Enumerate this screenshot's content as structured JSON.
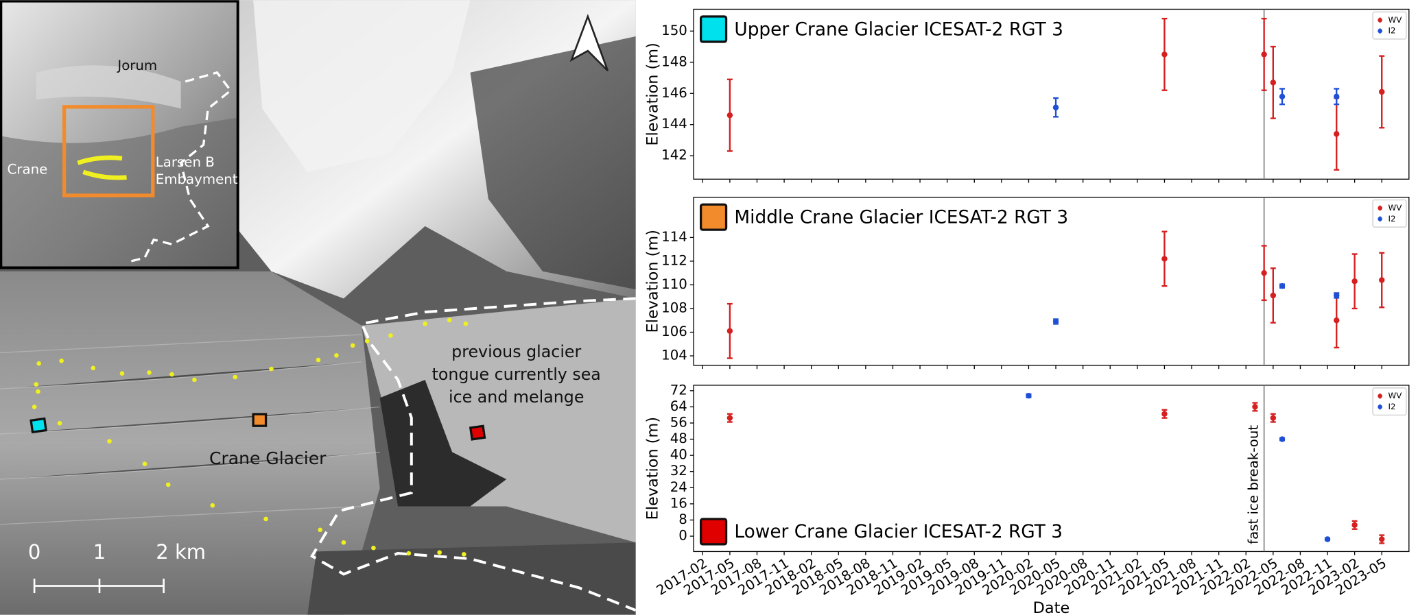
{
  "map": {
    "inset_labels": [
      "Jorum",
      "Crane"
    ],
    "embayment_label": [
      "Larsen B",
      "Embayment"
    ],
    "tongue_label": [
      "previous glacier",
      "tongue currently sea",
      "ice and melange"
    ],
    "glacier_label": "Crane Glacier",
    "scale_labels": [
      "0",
      "1",
      "2 km"
    ]
  },
  "chart_data": [
    {
      "type": "scatter",
      "title": "Upper Crane Glacier ICESAT-2 RGT 3",
      "title_color": "#00e1ee",
      "title_corner": "upper left",
      "ylabel": "Elevation (m)",
      "ylim": [
        140.5,
        151.4
      ],
      "yticks": [
        142,
        144,
        146,
        148,
        150
      ],
      "xlim": [
        "2017-01",
        "2023-08"
      ],
      "xticks": [
        "2017-02",
        "2017-05",
        "2017-08",
        "2017-11",
        "2018-02",
        "2018-05",
        "2018-08",
        "2018-11",
        "2019-02",
        "2019-05",
        "2019-08",
        "2019-11",
        "2020-02",
        "2020-05",
        "2020-08",
        "2020-11",
        "2021-02",
        "2021-05",
        "2021-08",
        "2021-11",
        "2022-02",
        "2022-05",
        "2022-08",
        "2022-11",
        "2023-02",
        "2023-05"
      ],
      "vline": "2022-04",
      "legend": "upper right",
      "series": [
        {
          "name": "WV",
          "color": "#d62020",
          "x": [
            "2017-05",
            "2021-05",
            "2022-04",
            "2022-05",
            "2022-12",
            "2023-05"
          ],
          "values": [
            144.6,
            148.5,
            148.5,
            146.7,
            143.4,
            146.1
          ],
          "errors": [
            2.3,
            2.3,
            2.3,
            2.3,
            2.3,
            2.3
          ]
        },
        {
          "name": "I2",
          "color": "#1f4fd6",
          "x": [
            "2020-05",
            "2022-06",
            "2022-12"
          ],
          "values": [
            145.1,
            145.8,
            145.8
          ],
          "errors": [
            0.6,
            0.5,
            0.5
          ]
        }
      ]
    },
    {
      "type": "scatter",
      "title": "Middle Crane Glacier ICESAT-2 RGT 3",
      "title_color": "#f28b2c",
      "title_corner": "upper left",
      "ylabel": "Elevation (m)",
      "ylim": [
        103.2,
        117.4
      ],
      "yticks": [
        104,
        106,
        108,
        110,
        112,
        114
      ],
      "xlim": [
        "2017-01",
        "2023-08"
      ],
      "xticks": [
        "2017-02",
        "2017-05",
        "2017-08",
        "2017-11",
        "2018-02",
        "2018-05",
        "2018-08",
        "2018-11",
        "2019-02",
        "2019-05",
        "2019-08",
        "2019-11",
        "2020-02",
        "2020-05",
        "2020-08",
        "2020-11",
        "2021-02",
        "2021-05",
        "2021-08",
        "2021-11",
        "2022-02",
        "2022-05",
        "2022-08",
        "2022-11",
        "2023-02",
        "2023-05"
      ],
      "vline": "2022-04",
      "legend": "upper right",
      "series": [
        {
          "name": "WV",
          "color": "#d62020",
          "x": [
            "2017-05",
            "2021-05",
            "2022-04",
            "2022-05",
            "2022-12",
            "2023-02",
            "2023-05"
          ],
          "values": [
            106.1,
            112.2,
            111.0,
            109.1,
            107.0,
            110.3,
            110.4
          ],
          "errors": [
            2.3,
            2.3,
            2.3,
            2.3,
            2.3,
            2.3,
            2.3
          ]
        },
        {
          "name": "I2",
          "color": "#1f4fd6",
          "x": [
            "2020-05",
            "2022-06",
            "2022-12"
          ],
          "values": [
            106.9,
            109.9,
            109.1
          ],
          "errors": [
            0.2,
            0.15,
            0.2
          ]
        }
      ]
    },
    {
      "type": "scatter",
      "title": "Lower Crane Glacier ICESAT-2 RGT 3",
      "title_color": "#e00000",
      "title_corner": "lower left",
      "ylabel": "Elevation (m)",
      "xlabel": "Date",
      "ylim": [
        -7.6,
        74.7
      ],
      "yticks": [
        0,
        8,
        16,
        24,
        32,
        40,
        48,
        56,
        64,
        72
      ],
      "xlim": [
        "2017-01",
        "2023-08"
      ],
      "xticks": [
        "2017-02",
        "2017-05",
        "2017-08",
        "2017-11",
        "2018-02",
        "2018-05",
        "2018-08",
        "2018-11",
        "2019-02",
        "2019-05",
        "2019-08",
        "2019-11",
        "2020-02",
        "2020-05",
        "2020-08",
        "2020-11",
        "2021-02",
        "2021-05",
        "2021-08",
        "2021-11",
        "2022-02",
        "2022-05",
        "2022-08",
        "2022-11",
        "2023-02",
        "2023-05"
      ],
      "vline": "2022-04",
      "vline_label": "fast ice break-out",
      "legend": "upper right",
      "series": [
        {
          "name": "WV",
          "color": "#d62020",
          "x": [
            "2017-05",
            "2021-05",
            "2022-03",
            "2022-05",
            "2023-02",
            "2023-05"
          ],
          "values": [
            58.5,
            60.5,
            64,
            58.5,
            5.5,
            -1.5
          ],
          "errors": [
            2,
            2,
            2,
            2,
            2,
            2
          ]
        },
        {
          "name": "I2",
          "color": "#1f4fd6",
          "x": [
            "2020-02",
            "2022-06",
            "2022-11"
          ],
          "values": [
            69.5,
            48,
            -1.5
          ],
          "errors": [
            0.8,
            0.6,
            0.6
          ]
        }
      ]
    }
  ]
}
